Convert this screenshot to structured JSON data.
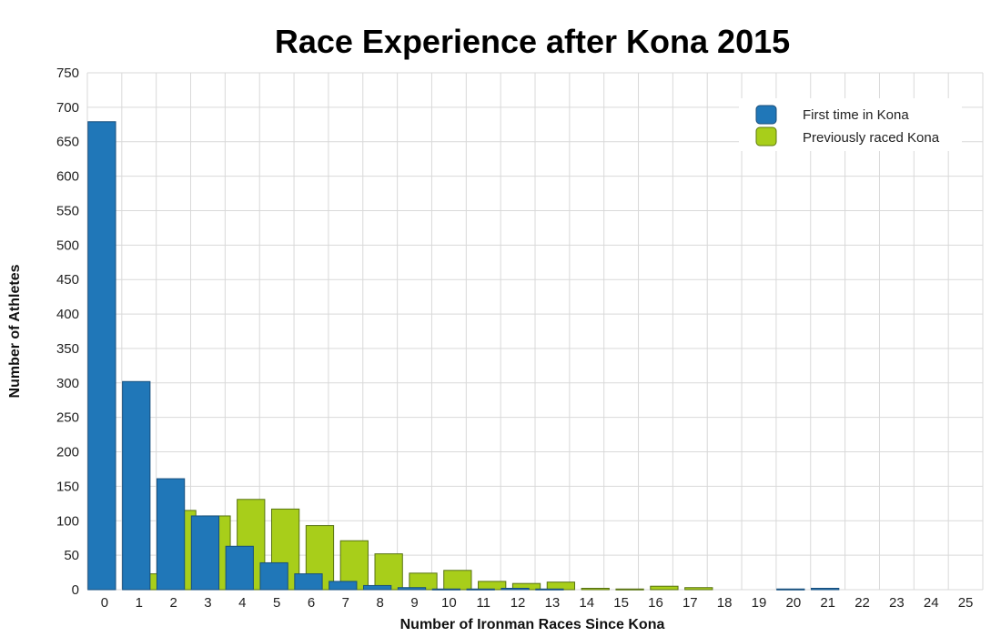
{
  "chart_data": {
    "type": "bar",
    "title": "Race Experience after Kona 2015",
    "xlabel": "Number of Ironman Races Since Kona",
    "ylabel": "Number of Athletes",
    "ylim": [
      0,
      750
    ],
    "yticks": [
      0,
      50,
      100,
      150,
      200,
      250,
      300,
      350,
      400,
      450,
      500,
      550,
      600,
      650,
      700,
      750
    ],
    "categories": [
      "0",
      "1",
      "2",
      "3",
      "4",
      "5",
      "6",
      "7",
      "8",
      "9",
      "10",
      "11",
      "12",
      "13",
      "14",
      "15",
      "16",
      "17",
      "18",
      "19",
      "20",
      "21",
      "22",
      "23",
      "24",
      "25"
    ],
    "series": [
      {
        "name": "First time in Kona",
        "color": "#2077b8",
        "values": [
          679,
          302,
          161,
          107,
          63,
          39,
          23,
          12,
          6,
          3,
          1,
          1,
          2,
          1,
          0,
          0,
          0,
          0,
          0,
          0,
          1,
          2,
          0,
          0,
          0,
          0
        ]
      },
      {
        "name": "Previously raced Kona",
        "color": "#a8ce1a",
        "values": [
          0,
          23,
          115,
          107,
          131,
          117,
          93,
          71,
          52,
          24,
          28,
          12,
          9,
          11,
          2,
          1,
          5,
          3,
          0,
          0,
          0,
          0,
          0,
          0,
          0,
          0
        ]
      }
    ],
    "grid": true,
    "legend_position": "top-right"
  }
}
